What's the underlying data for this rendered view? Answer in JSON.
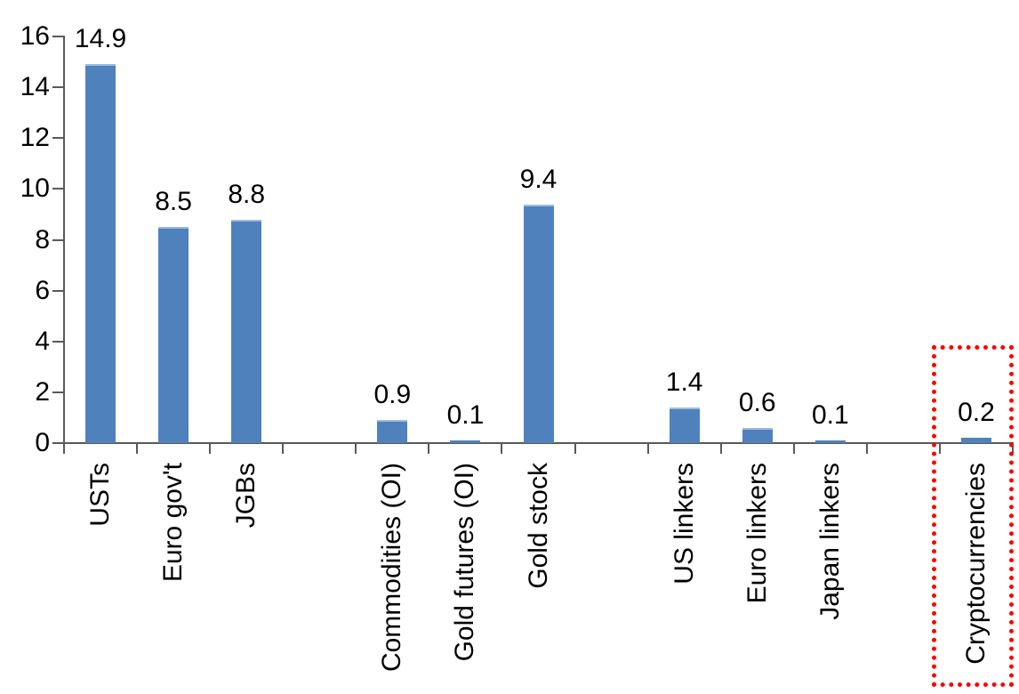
{
  "chart_data": {
    "type": "bar",
    "title": "",
    "xlabel": "",
    "ylabel": "",
    "categories": [
      "USTs",
      "Euro gov't",
      "JGBs",
      "Commodities (OI)",
      "Gold futures (OI)",
      "Gold stock",
      "US linkers",
      "Euro linkers",
      "Japan linkers",
      "Cryptocurrencies"
    ],
    "values": [
      14.9,
      8.5,
      8.8,
      0.9,
      0.1,
      9.4,
      1.4,
      0.6,
      0.1,
      0.2
    ],
    "data_labels": [
      "14.9",
      "8.5",
      "8.8",
      "0.9",
      "0.1",
      "9.4",
      "1.4",
      "0.6",
      "0.1",
      "0.2"
    ],
    "slots": [
      0,
      1,
      2,
      4,
      5,
      6,
      8,
      9,
      10,
      12
    ],
    "total_slots": 13,
    "ylim": [
      0,
      16
    ],
    "y_ticks": [
      0,
      2,
      4,
      6,
      8,
      10,
      12,
      14,
      16
    ],
    "grid": "off",
    "legend": "none",
    "bar_color": "#4F81BD",
    "bar_top_edge_color": "#9BBCDD",
    "axis_color": "#595959",
    "text_color": "#000000",
    "highlight": {
      "category": "Cryptocurrencies",
      "value": 0.2,
      "style": "red-dotted-box",
      "color": "#FF0000"
    }
  }
}
